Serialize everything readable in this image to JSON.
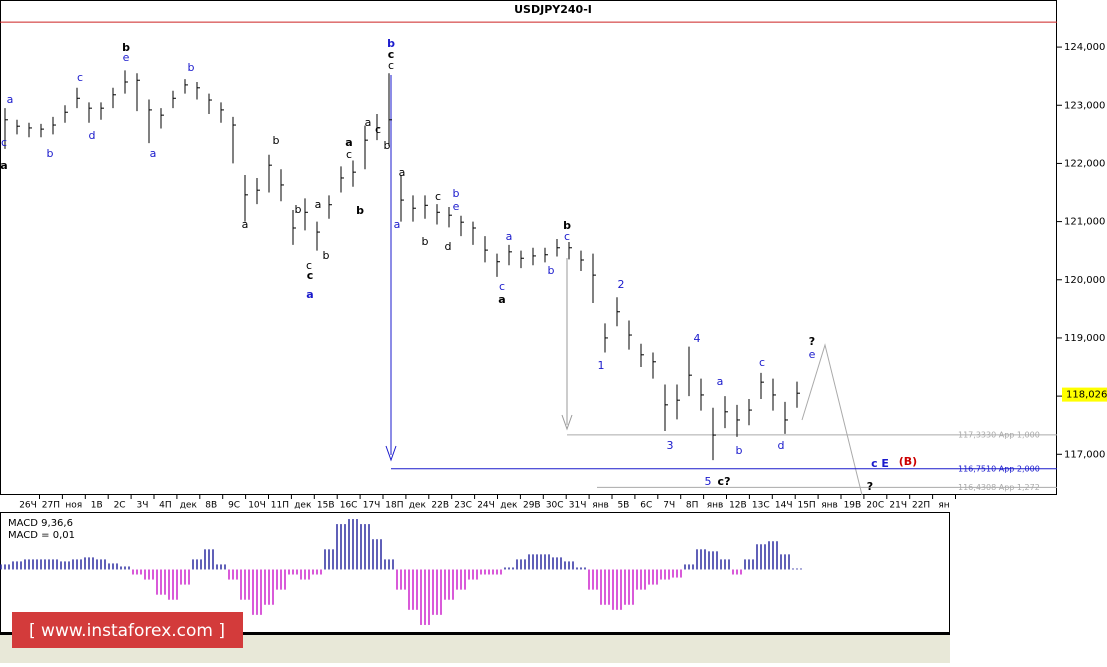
{
  "chart_data": {
    "type": "ohlc",
    "title": "USDJPY240-I",
    "ylim": [
      116.3,
      124.5
    ],
    "yticks": [
      {
        "value": 124,
        "label": "124,000"
      },
      {
        "value": 123,
        "label": "123,000"
      },
      {
        "value": 122,
        "label": "122,000"
      },
      {
        "value": 121,
        "label": "121,000"
      },
      {
        "value": 120,
        "label": "120,000"
      },
      {
        "value": 119,
        "label": "119,000"
      },
      {
        "value": 118,
        "label": "118,000"
      },
      {
        "value": 117,
        "label": "117,000"
      }
    ],
    "x_labels": [
      "26Ч",
      "27П",
      "ноя",
      "1В",
      "2С",
      "3Ч",
      "4П",
      "дек",
      "8В",
      "9С",
      "10Ч",
      "11П",
      "дек",
      "15В",
      "16С",
      "17Ч",
      "18П",
      "дек",
      "22В",
      "23С",
      "24Ч",
      "дек",
      "29В",
      "30С",
      "31Ч",
      "янв",
      "5В",
      "6С",
      "7Ч",
      "8П",
      "янв",
      "12В",
      "13С",
      "14Ч",
      "15П",
      "янв",
      "19В",
      "20С",
      "21Ч",
      "22П",
      "ян"
    ],
    "color": "#000000",
    "high": [
      122.95,
      122.75,
      122.7,
      122.68,
      122.8,
      123.0,
      123.3,
      123.05,
      123.05,
      123.3,
      123.6,
      123.55,
      123.1,
      122.95,
      123.25,
      123.45,
      123.4,
      123.2,
      123.05,
      122.8,
      121.8,
      121.75,
      122.15,
      121.9,
      121.2,
      121.4,
      121.0,
      121.45,
      121.95,
      122.05,
      122.65,
      122.85,
      123.55,
      121.8,
      121.45,
      121.45,
      121.3,
      121.25,
      121.1,
      121.0,
      120.75,
      120.45,
      120.6,
      120.5,
      120.55,
      120.55,
      120.7,
      120.65,
      120.5,
      120.45,
      119.25,
      119.7,
      119.3,
      118.9,
      118.75,
      118.2,
      118.2,
      118.85,
      118.3,
      117.8,
      118.0,
      117.85,
      117.95,
      118.4,
      118.3,
      117.9,
      118.25
    ],
    "low": [
      122.25,
      122.5,
      122.45,
      122.45,
      122.5,
      122.7,
      122.95,
      122.7,
      122.75,
      122.95,
      123.2,
      122.9,
      122.35,
      122.6,
      122.95,
      123.2,
      123.1,
      122.85,
      122.7,
      122.0,
      121.0,
      121.3,
      121.5,
      121.35,
      120.6,
      120.85,
      120.5,
      121.05,
      121.5,
      121.6,
      121.9,
      122.4,
      122.3,
      121.0,
      121.0,
      121.05,
      120.95,
      120.9,
      120.75,
      120.6,
      120.3,
      120.05,
      120.25,
      120.2,
      120.25,
      120.3,
      120.4,
      120.35,
      120.15,
      119.6,
      118.75,
      119.2,
      118.8,
      118.5,
      118.3,
      117.4,
      117.6,
      118.0,
      117.75,
      116.9,
      117.45,
      117.3,
      117.5,
      117.95,
      117.75,
      117.35,
      117.8
    ],
    "close": [
      122.75,
      122.64,
      122.61,
      122.59,
      122.66,
      122.88,
      123.12,
      122.95,
      122.95,
      123.18,
      123.4,
      123.43,
      122.92,
      122.83,
      123.12,
      123.35,
      123.3,
      123.09,
      122.92,
      122.66,
      121.46,
      121.54,
      121.97,
      121.63,
      120.89,
      121.16,
      120.82,
      121.29,
      121.75,
      121.85,
      122.4,
      122.61,
      122.75,
      121.37,
      121.23,
      121.28,
      121.16,
      121.11,
      120.99,
      120.89,
      120.51,
      120.31,
      120.48,
      120.37,
      120.41,
      120.43,
      120.55,
      120.55,
      120.34,
      120.08,
      119.0,
      119.45,
      119.05,
      118.71,
      118.59,
      117.85,
      117.93,
      118.36,
      118.02,
      117.33,
      117.73,
      117.59,
      117.76,
      118.24,
      118.02,
      117.59,
      118.05
    ],
    "top_line": {
      "value": 124.43,
      "color": "#cc2222"
    },
    "levels": [
      {
        "value": 117.333,
        "label": "117,3330 App 1,000",
        "color": "#aaaaaa"
      },
      {
        "value": 116.751,
        "label": "116,7510 App 2,000",
        "color": "#1a1acc"
      },
      {
        "value": 116.4308,
        "label": "116,4308 App 1,272",
        "color": "#aaaaaa"
      }
    ],
    "last_price": {
      "value": 118.026,
      "label": "118,026",
      "color": "#ffff00"
    },
    "annotations": [
      {
        "text": "a",
        "color": "#1a1acc",
        "bold": false
      },
      {
        "text": "c",
        "color": "#1a1acc",
        "bold": false
      },
      {
        "text": "a",
        "color": "#000000",
        "bold": true
      },
      {
        "text": "b",
        "color": "#1a1acc",
        "bold": false
      },
      {
        "text": "c",
        "color": "#1a1acc",
        "bold": false
      },
      {
        "text": "d",
        "color": "#1a1acc",
        "bold": false
      },
      {
        "text": "b",
        "color": "#000000",
        "bold": true
      },
      {
        "text": "e",
        "color": "#1a1acc",
        "bold": false
      },
      {
        "text": "b",
        "color": "#1a1acc",
        "bold": false
      },
      {
        "text": "a",
        "color": "#1a1acc",
        "bold": false
      },
      {
        "text": "b",
        "color": "#000000",
        "bold": false
      },
      {
        "text": "a",
        "color": "#000000",
        "bold": false
      },
      {
        "text": "a",
        "color": "#000000",
        "bold": false
      },
      {
        "text": "b",
        "color": "#000000",
        "bold": false
      },
      {
        "text": "b",
        "color": "#000000",
        "bold": false
      },
      {
        "text": "c",
        "color": "#000000",
        "bold": false
      },
      {
        "text": "c",
        "color": "#000000",
        "bold": true
      },
      {
        "text": "a",
        "color": "#1a1acc",
        "bold": true
      },
      {
        "text": "a",
        "color": "#000000",
        "bold": true
      },
      {
        "text": "c",
        "color": "#000000",
        "bold": false
      },
      {
        "text": "b",
        "color": "#000000",
        "bold": true
      },
      {
        "text": "a",
        "color": "#000000",
        "bold": false
      },
      {
        "text": "c",
        "color": "#000000",
        "bold": false
      },
      {
        "text": "b",
        "color": "#000000",
        "bold": false
      },
      {
        "text": "b",
        "color": "#1a1acc",
        "bold": true
      },
      {
        "text": "c",
        "color": "#000000",
        "bold": true
      },
      {
        "text": "c",
        "color": "#000000",
        "bold": false
      },
      {
        "text": "a",
        "color": "#000000",
        "bold": false
      },
      {
        "text": "a",
        "color": "#1a1acc",
        "bold": false
      },
      {
        "text": "c",
        "color": "#000000",
        "bold": false
      },
      {
        "text": "b",
        "color": "#1a1acc",
        "bold": false
      },
      {
        "text": "e",
        "color": "#1a1acc",
        "bold": false
      },
      {
        "text": "b",
        "color": "#000000",
        "bold": false
      },
      {
        "text": "d",
        "color": "#000000",
        "bold": false
      },
      {
        "text": "a",
        "color": "#1a1acc",
        "bold": false
      },
      {
        "text": "c",
        "color": "#1a1acc",
        "bold": false
      },
      {
        "text": "a",
        "color": "#000000",
        "bold": true
      },
      {
        "text": "b",
        "color": "#1a1acc",
        "bold": false
      },
      {
        "text": "b",
        "color": "#000000",
        "bold": true
      },
      {
        "text": "c",
        "color": "#1a1acc",
        "bold": false
      },
      {
        "text": "1",
        "color": "#1a1acc",
        "bold": false
      },
      {
        "text": "2",
        "color": "#1a1acc",
        "bold": false
      },
      {
        "text": "3",
        "color": "#1a1acc",
        "bold": false
      },
      {
        "text": "4",
        "color": "#1a1acc",
        "bold": false
      },
      {
        "text": "5",
        "color": "#1a1acc",
        "bold": false
      },
      {
        "text": "c?",
        "color": "#000000",
        "bold": true
      },
      {
        "text": "a",
        "color": "#1a1acc",
        "bold": false
      },
      {
        "text": "b",
        "color": "#1a1acc",
        "bold": false
      },
      {
        "text": "c",
        "color": "#1a1acc",
        "bold": false
      },
      {
        "text": "d",
        "color": "#1a1acc",
        "bold": false
      },
      {
        "text": "?",
        "color": "#000000",
        "bold": true
      },
      {
        "text": "e",
        "color": "#1a1acc",
        "bold": false
      },
      {
        "text": "c E",
        "color": "#1a1acc",
        "bold": true
      },
      {
        "text": "(B)",
        "color": "#cc0000",
        "bold": true
      },
      {
        "text": "?",
        "color": "#000000",
        "bold": true
      }
    ],
    "macd": {
      "label": "MACD 9,36,6",
      "value_label": "MACD = 0,01",
      "ylim": [
        -0.62,
        0.56
      ],
      "positive_color": "#2a2aa0",
      "negative_color": "#cc22cc",
      "values": [
        0.05,
        0.08,
        0.1,
        0.1,
        0.1,
        0.08,
        0.1,
        0.12,
        0.1,
        0.06,
        0.03,
        -0.05,
        -0.1,
        -0.25,
        -0.3,
        -0.15,
        0.1,
        0.2,
        0.05,
        -0.1,
        -0.3,
        -0.45,
        -0.35,
        -0.2,
        -0.05,
        -0.1,
        -0.05,
        0.2,
        0.45,
        0.5,
        0.45,
        0.3,
        0.1,
        -0.2,
        -0.4,
        -0.55,
        -0.45,
        -0.3,
        -0.2,
        -0.1,
        -0.05,
        -0.05,
        0.02,
        0.1,
        0.15,
        0.15,
        0.12,
        0.08,
        0.02,
        -0.2,
        -0.35,
        -0.4,
        -0.35,
        -0.2,
        -0.15,
        -0.1,
        -0.08,
        0.05,
        0.2,
        0.18,
        0.1,
        -0.05,
        0.1,
        0.25,
        0.28,
        0.15,
        0.01
      ]
    },
    "watermark": "[ www.instaforex.com ]"
  }
}
